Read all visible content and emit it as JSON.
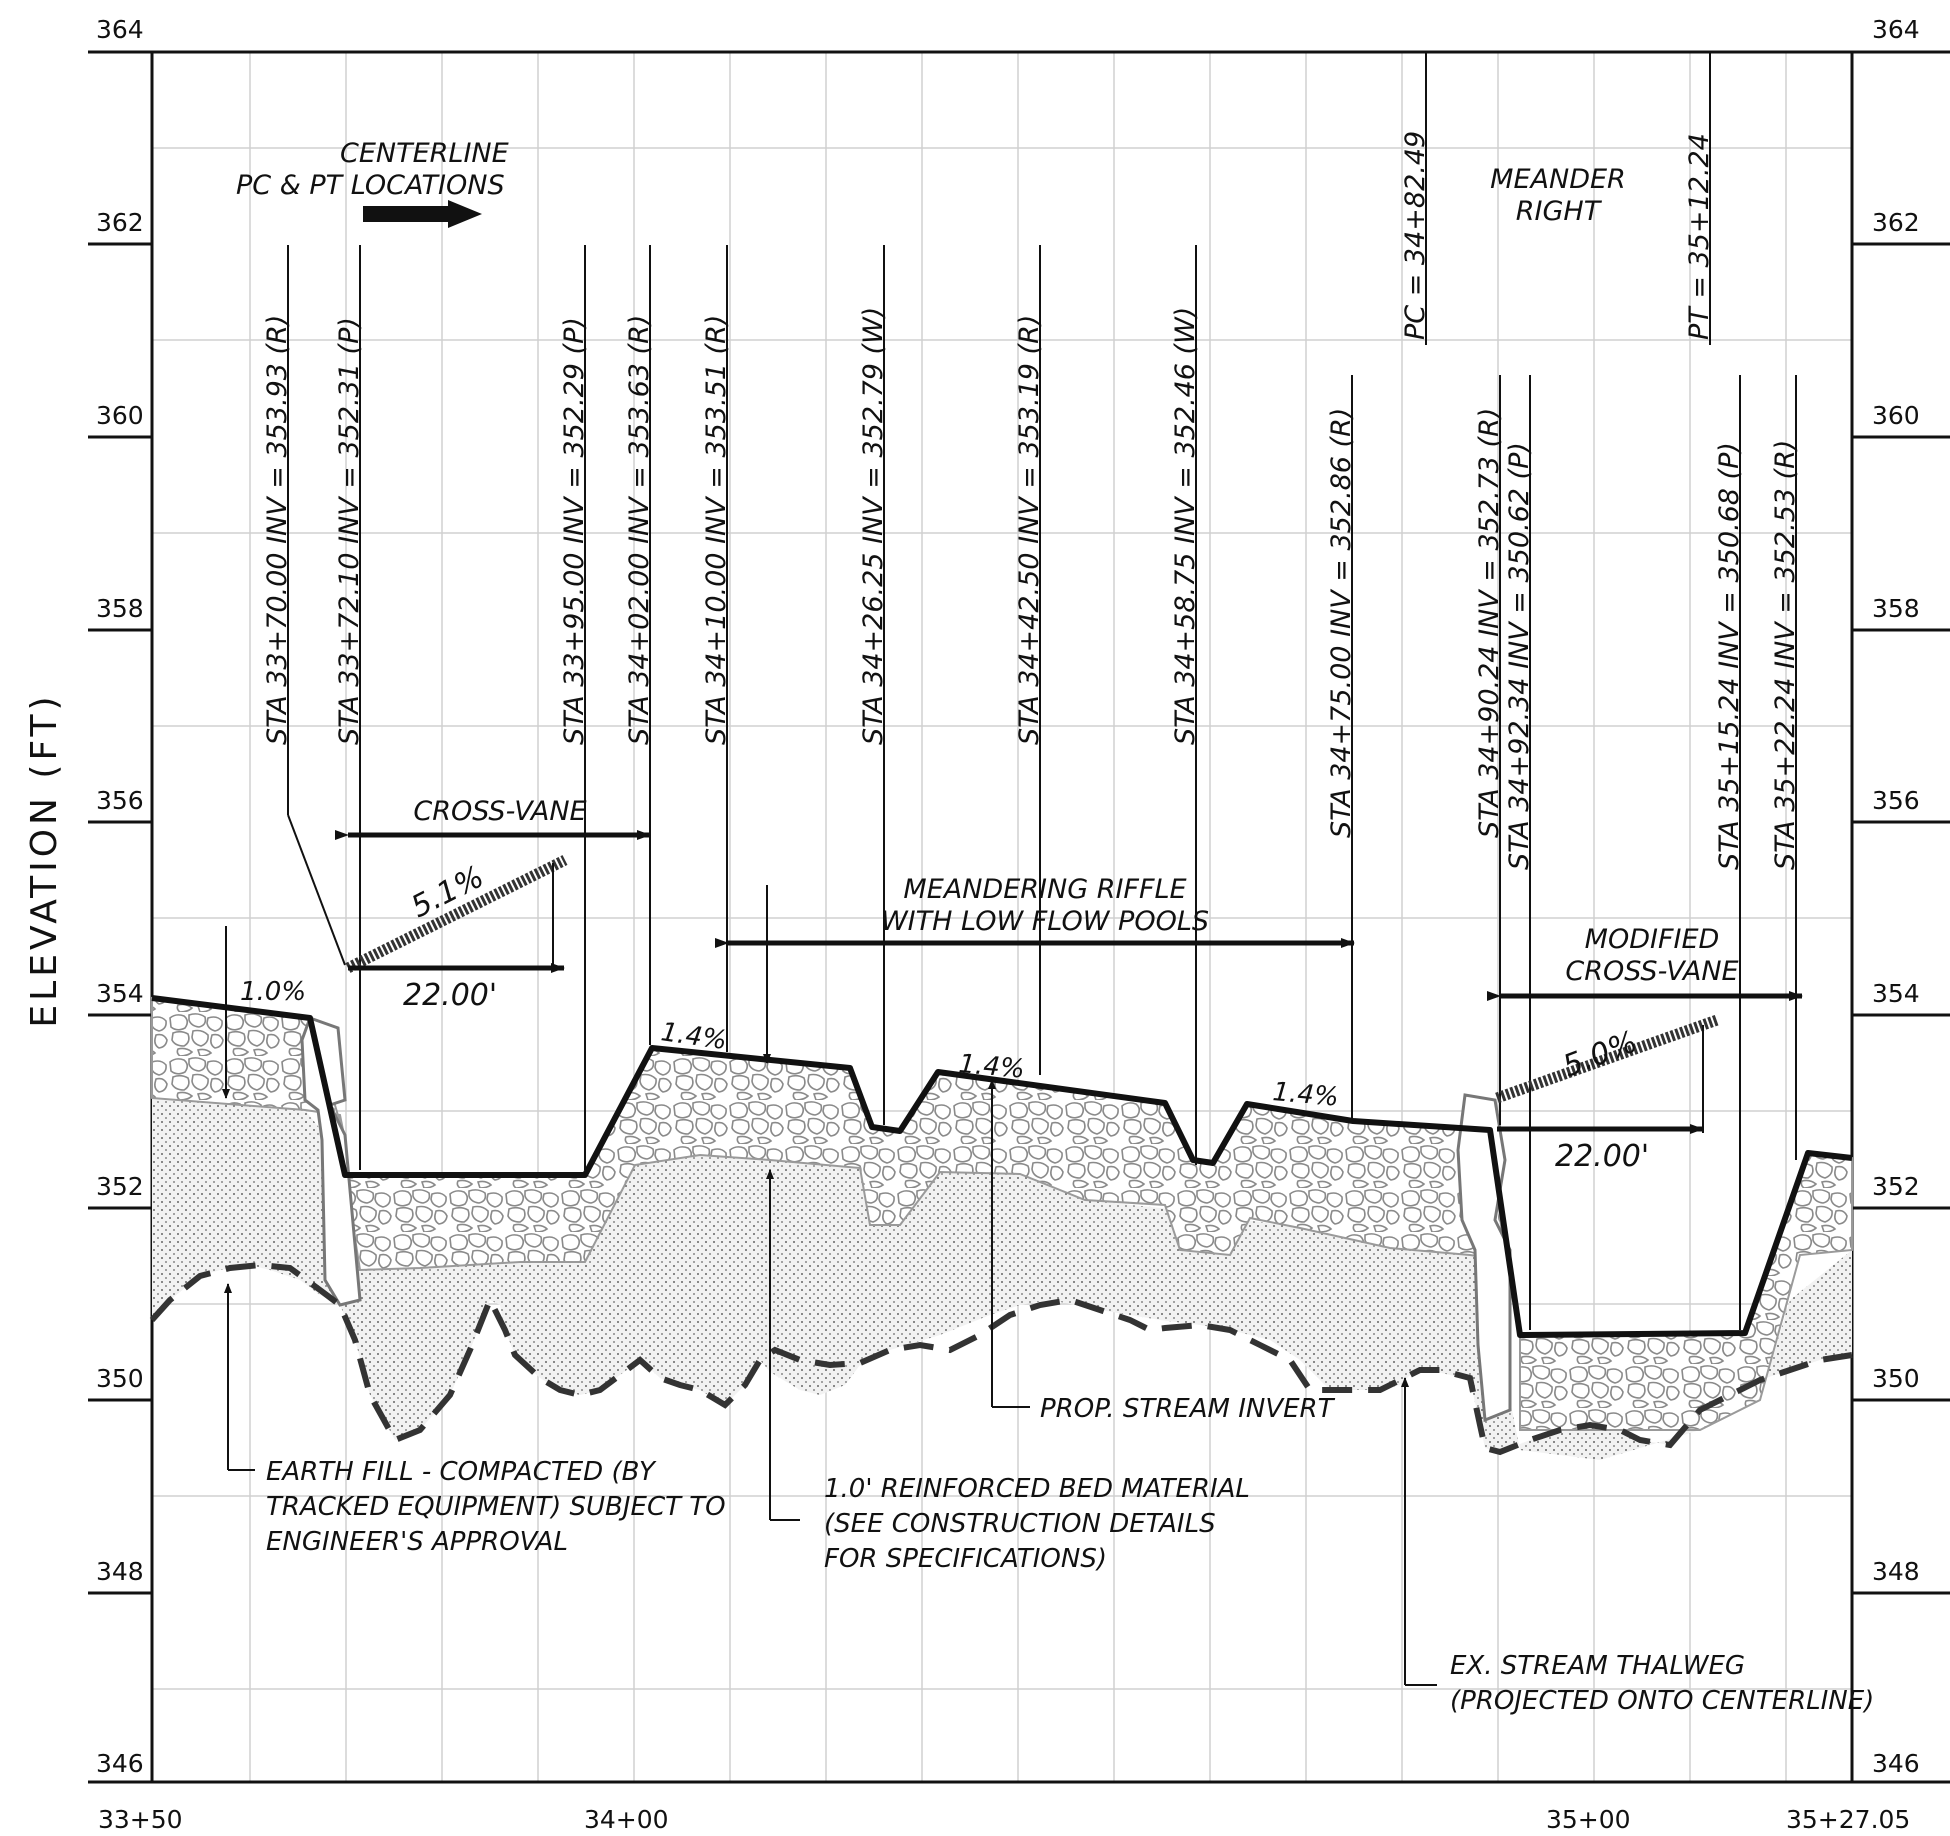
{
  "y_axis": {
    "title": "ELEVATION (FT)",
    "ticks": [
      "364",
      "362",
      "360",
      "358",
      "356",
      "354",
      "352",
      "350",
      "348",
      "346"
    ]
  },
  "x_axis": {
    "ticks": [
      "33+50",
      "34+00",
      "35+00",
      "35+27.05"
    ]
  },
  "station_callouts": [
    {
      "sta": "33+70.00",
      "inv": "353.93",
      "type": "R"
    },
    {
      "sta": "33+72.10",
      "inv": "352.31",
      "type": "P"
    },
    {
      "sta": "33+95.00",
      "inv": "352.29",
      "type": "P"
    },
    {
      "sta": "34+02.00",
      "inv": "353.63",
      "type": "R"
    },
    {
      "sta": "34+10.00",
      "inv": "353.51",
      "type": "R"
    },
    {
      "sta": "34+26.25",
      "inv": "352.79",
      "type": "W"
    },
    {
      "sta": "34+42.50",
      "inv": "353.19",
      "type": "R"
    },
    {
      "sta": "34+58.75",
      "inv": "352.46",
      "type": "W"
    },
    {
      "sta": "34+75.00",
      "inv": "352.86",
      "type": "R"
    },
    {
      "sta": "34+90.24",
      "inv": "352.73",
      "type": "R"
    },
    {
      "sta": "34+92.34",
      "inv": "350.62",
      "type": "P"
    },
    {
      "sta": "35+15.24",
      "inv": "350.68",
      "type": "P"
    },
    {
      "sta": "35+22.24",
      "inv": "352.53",
      "type": "R"
    }
  ],
  "curve_points": [
    {
      "label": "PC",
      "sta": "34+82.49"
    },
    {
      "label": "PT",
      "sta": "35+12.24"
    }
  ],
  "labels": {
    "centerline_1": "CENTERLINE",
    "centerline_2": "PC & PT LOCATIONS",
    "meander_1": "MEANDER",
    "meander_2": "RIGHT",
    "cross_vane": "CROSS-VANE",
    "meandering_1": "MEANDERING RIFFLE",
    "meandering_2": "WITH LOW FLOW POOLS",
    "modified_1": "MODIFIED",
    "modified_2": "CROSS-VANE",
    "slope_1": "5.1%",
    "slope_2": "5.0%",
    "length_1": "22.00'",
    "length_2": "22.00'",
    "grade_a": "1.0%",
    "grade_b": "1.4%",
    "grade_c": "1.4%",
    "grade_d": "1.4%"
  },
  "notes": {
    "earth_fill": [
      "EARTH FILL - COMPACTED (BY",
      "TRACKED EQUIPMENT) SUBJECT TO",
      "ENGINEER'S APPROVAL"
    ],
    "bed_material": [
      "1.0' REINFORCED BED MATERIAL",
      "(SEE CONSTRUCTION DETAILS",
      "FOR SPECIFICATIONS)"
    ],
    "stream_invert": [
      "PROP. STREAM INVERT"
    ],
    "thalweg": [
      "EX. STREAM THALWEG",
      "(PROJECTED ONTO CENTERLINE)"
    ]
  }
}
